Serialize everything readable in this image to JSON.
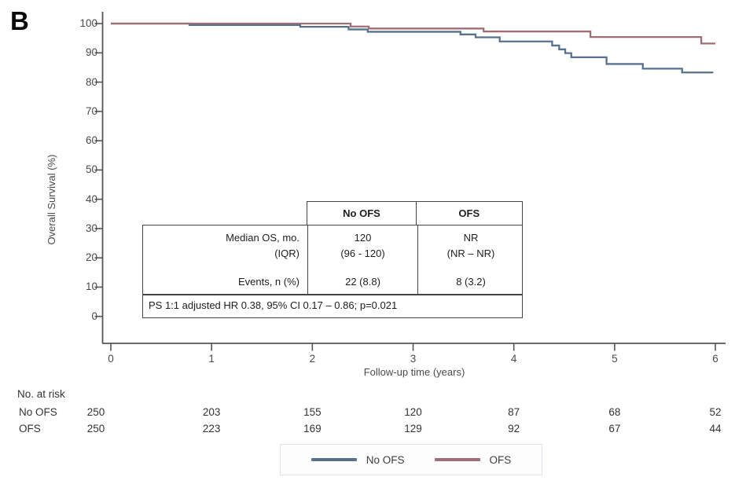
{
  "panel_label": "B",
  "chart_data": {
    "type": "line",
    "subtype": "kaplan-meier-step",
    "title": "",
    "xlabel": "Follow-up time (years)",
    "ylabel": "Overall Survival (%)",
    "xlim": [
      0,
      6
    ],
    "ylim": [
      0,
      100
    ],
    "x_ticks": [
      0,
      1,
      2,
      3,
      4,
      5,
      6
    ],
    "y_ticks": [
      100,
      90,
      80,
      70,
      60,
      50,
      40,
      30,
      20,
      10,
      0
    ],
    "grid": false,
    "legend_position": "bottom-center",
    "series": [
      {
        "name": "No OFS",
        "color": "#57718f",
        "start": [
          0,
          100
        ],
        "drops": [
          [
            0.78,
            99.5
          ],
          [
            1.88,
            98.9
          ],
          [
            2.36,
            98.0
          ],
          [
            2.55,
            97.2
          ],
          [
            3.47,
            96.3
          ],
          [
            3.62,
            95.3
          ],
          [
            3.86,
            93.9
          ],
          [
            4.38,
            92.5
          ],
          [
            4.45,
            91.2
          ],
          [
            4.51,
            89.9
          ],
          [
            4.57,
            88.5
          ],
          [
            4.92,
            86.2
          ],
          [
            5.28,
            84.6
          ],
          [
            5.67,
            83.3
          ]
        ],
        "end_x": 5.98,
        "end_y": 83.3
      },
      {
        "name": "OFS",
        "color": "#a06e75",
        "start": [
          0,
          100
        ],
        "drops": [
          [
            2.38,
            99.0
          ],
          [
            2.56,
            98.3
          ],
          [
            3.7,
            97.3
          ],
          [
            4.76,
            95.4
          ],
          [
            5.86,
            93.2
          ]
        ],
        "end_x": 6.0,
        "end_y": 93.2
      }
    ],
    "risk_table": {
      "title": "No. at risk",
      "time_points": [
        0,
        1,
        2,
        3,
        4,
        5,
        6
      ],
      "rows": [
        {
          "label": "No OFS",
          "counts": [
            250,
            203,
            155,
            120,
            87,
            68,
            52
          ]
        },
        {
          "label": "OFS",
          "counts": [
            250,
            223,
            169,
            129,
            92,
            67,
            44
          ]
        }
      ]
    }
  },
  "inset_table": {
    "col_headers": [
      "No OFS",
      "OFS"
    ],
    "median_row": {
      "label_line1": "Median OS, mo.",
      "label_line2": "(IQR)",
      "no_ofs_line1": "120",
      "no_ofs_line2": "(96 - 120)",
      "ofs_line1": "NR",
      "ofs_line2": "(NR – NR)"
    },
    "events_row": {
      "label": "Events, n (%)",
      "no_ofs": "22 (8.8)",
      "ofs": "8 (3.2)"
    },
    "footer": "PS 1:1 adjusted HR 0.38, 95% CI 0.17 – 0.86; p=0.021"
  },
  "colors": {
    "axis": "#555555",
    "no_ofs_line": "#57718f",
    "ofs_line": "#a06e75",
    "table_border": "#444444"
  }
}
